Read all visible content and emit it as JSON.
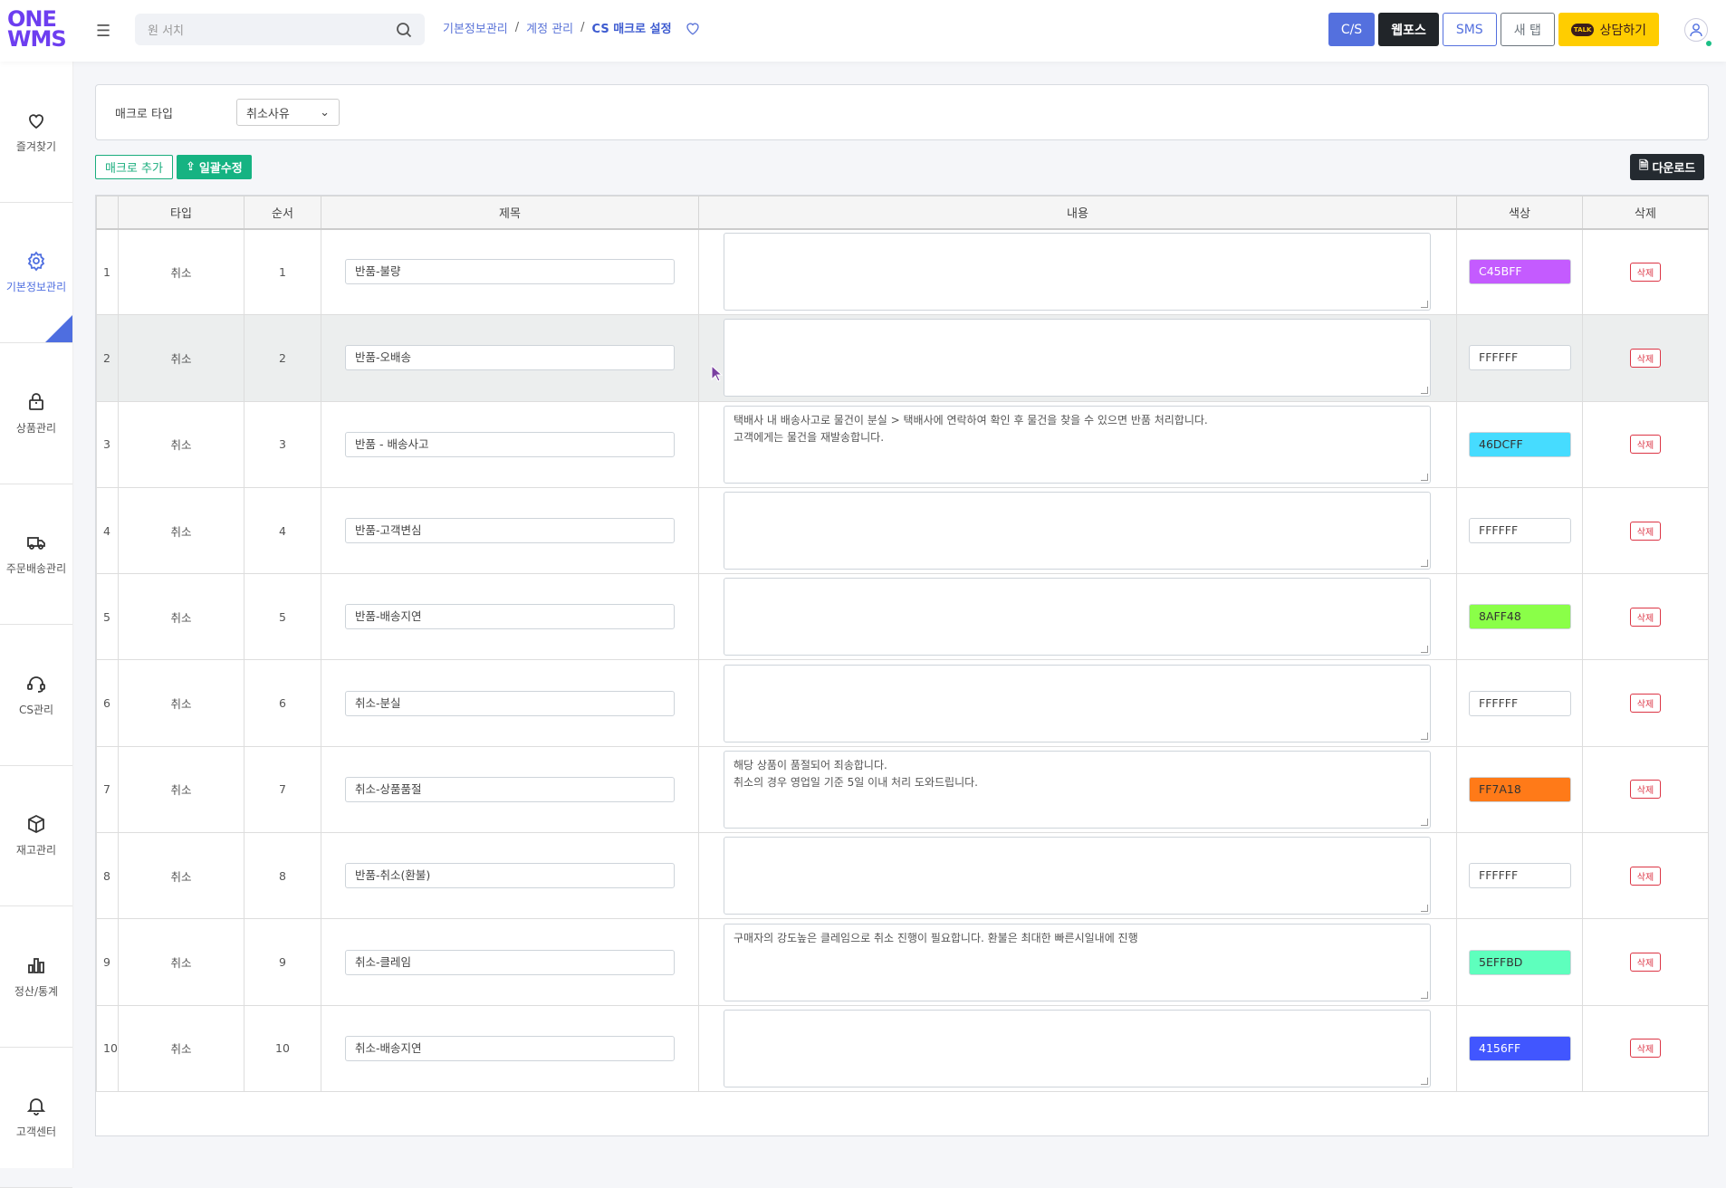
{
  "header": {
    "logo": "ONE WMS",
    "search_placeholder": "원 서치",
    "breadcrumb": [
      "기본정보관리",
      "계정 관리",
      "CS 매크로 설정"
    ],
    "buttons": {
      "cs": "C/S",
      "webpos": "웹포스",
      "sms": "SMS",
      "newtab": "새 탭",
      "consult": "상담하기"
    }
  },
  "sidebar": {
    "items": [
      {
        "label": "즐겨찾기",
        "icon": "heart-icon"
      },
      {
        "label": "기본정보관리",
        "icon": "gear-icon",
        "active": true
      },
      {
        "label": "상품관리",
        "icon": "bag-icon"
      },
      {
        "label": "주문배송관리",
        "icon": "truck-icon"
      },
      {
        "label": "CS관리",
        "icon": "headset-icon"
      },
      {
        "label": "재고관리",
        "icon": "box-icon"
      },
      {
        "label": "정산/통계",
        "icon": "bar-chart-icon"
      },
      {
        "label": "고객센터",
        "icon": "bell-icon"
      }
    ]
  },
  "filter": {
    "label": "매크로 타입",
    "value": "취소사유"
  },
  "actions": {
    "add": "매크로 추가",
    "bulk": "일괄수정",
    "download": "다운로드"
  },
  "table": {
    "headers": [
      "",
      "타입",
      "순서",
      "제목",
      "내용",
      "색상",
      "삭제"
    ],
    "delete_label": "삭제",
    "rows": [
      {
        "no": "1",
        "type": "취소",
        "order": "1",
        "title": "반품-불량",
        "content": "",
        "color": "C45BFF",
        "hex": "#C45BFF"
      },
      {
        "no": "2",
        "type": "취소",
        "order": "2",
        "title": "반품-오배송",
        "content": "",
        "color": "FFFFFF",
        "hex": "#FFFFFF"
      },
      {
        "no": "3",
        "type": "취소",
        "order": "3",
        "title": "반품 - 배송사고",
        "content": "택배사 내 배송사고로 물건이 분실 > 택배사에 연락하여 확인 후 물건을 찾을 수 있으면 반품 처리합니다.\n고객에게는 물건을 재발송합니다.",
        "color": "46DCFF",
        "hex": "#46DCFF"
      },
      {
        "no": "4",
        "type": "취소",
        "order": "4",
        "title": "반품-고객변심",
        "content": "",
        "color": "FFFFFF",
        "hex": "#FFFFFF"
      },
      {
        "no": "5",
        "type": "취소",
        "order": "5",
        "title": "반품-배송지연",
        "content": "",
        "color": "8AFF48",
        "hex": "#8AFF48"
      },
      {
        "no": "6",
        "type": "취소",
        "order": "6",
        "title": "취소-분실",
        "content": "",
        "color": "FFFFFF",
        "hex": "#FFFFFF"
      },
      {
        "no": "7",
        "type": "취소",
        "order": "7",
        "title": "취소-상품품절",
        "content": "해당 상품이 품절되어 죄송합니다.\n취소의 경우 영업일 기준 5일 이내 처리 도와드립니다.",
        "color": "FF7A18",
        "hex": "#FF7A18"
      },
      {
        "no": "8",
        "type": "취소",
        "order": "8",
        "title": "반품-취소(환불)",
        "content": "",
        "color": "FFFFFF",
        "hex": "#FFFFFF"
      },
      {
        "no": "9",
        "type": "취소",
        "order": "9",
        "title": "취소-클레임",
        "content": "구매자의 강도높은 클레임으로 취소 진행이 필요합니다. 환불은 최대한 빠른시일내에 진행",
        "color": "5EFFBD",
        "hex": "#5EFFBD"
      },
      {
        "no": "10",
        "type": "취소",
        "order": "10",
        "title": "취소-배송지연",
        "content": "",
        "color": "4156FF",
        "hex": "#4156FF"
      }
    ]
  }
}
